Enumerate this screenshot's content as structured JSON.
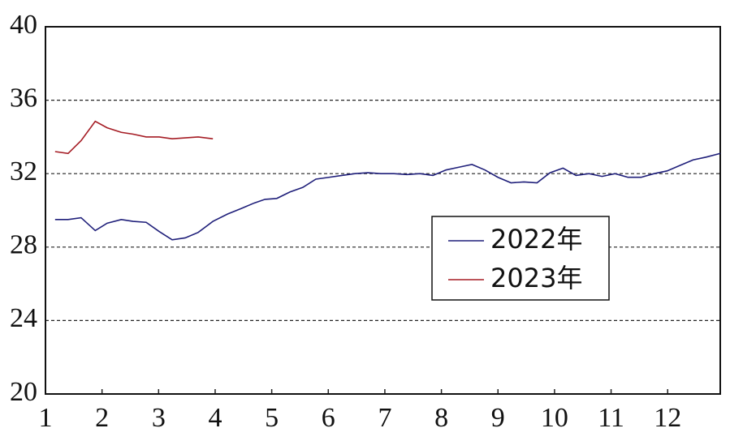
{
  "chart_data": {
    "type": "line",
    "x": [
      1.17,
      1.4,
      1.63,
      1.88,
      2.09,
      2.34,
      2.55,
      2.78,
      3.01,
      3.24,
      3.47,
      3.7,
      3.96,
      4.22,
      4.46,
      4.69,
      4.88,
      5.09,
      5.32,
      5.55,
      5.78,
      6.01,
      6.24,
      6.47,
      6.7,
      6.93,
      7.16,
      7.39,
      7.62,
      7.85,
      8.08,
      8.31,
      8.54,
      8.77,
      9.0,
      9.23,
      9.46,
      9.69,
      9.92,
      10.15,
      10.38,
      10.61,
      10.84,
      11.07,
      11.3,
      11.53,
      11.76,
      11.99,
      12.22,
      12.45,
      12.68,
      12.93
    ],
    "series": [
      {
        "name": "2022年",
        "color": "#1f1f7a",
        "values": [
          29.5,
          29.5,
          29.6,
          28.9,
          29.3,
          29.5,
          29.4,
          29.35,
          28.85,
          28.4,
          28.5,
          28.8,
          29.4,
          29.8,
          30.1,
          30.4,
          30.6,
          30.65,
          31.0,
          31.25,
          31.7,
          31.8,
          31.9,
          32.0,
          32.05,
          32.0,
          32.0,
          31.95,
          32.0,
          31.9,
          32.2,
          32.35,
          32.5,
          32.2,
          31.8,
          31.5,
          31.55,
          31.5,
          32.05,
          32.3,
          31.9,
          32.0,
          31.85,
          32.0,
          31.8,
          31.8,
          32.0,
          32.15,
          32.45,
          32.75,
          32.9,
          33.1
        ]
      },
      {
        "name": "2023年",
        "color": "#a51c24",
        "values": [
          33.2,
          33.1,
          33.8,
          34.85,
          34.5,
          34.25,
          34.15,
          34.0,
          34.0,
          33.9,
          33.95,
          34.0,
          33.9,
          null,
          null,
          null,
          null,
          null,
          null,
          null,
          null,
          null,
          null,
          null,
          null,
          null,
          null,
          null,
          null,
          null,
          null,
          null,
          null,
          null,
          null,
          null,
          null,
          null,
          null,
          null,
          null,
          null,
          null,
          null,
          null,
          null,
          null,
          null,
          null,
          null,
          null,
          null
        ]
      }
    ],
    "xlim": [
      1,
      12.93
    ],
    "xticks": [
      1,
      2,
      3,
      4,
      5,
      6,
      7,
      8,
      9,
      10,
      11,
      12
    ],
    "ylim": [
      20,
      40
    ],
    "yticks": [
      20,
      24,
      28,
      32,
      36,
      40
    ],
    "grid": true
  }
}
